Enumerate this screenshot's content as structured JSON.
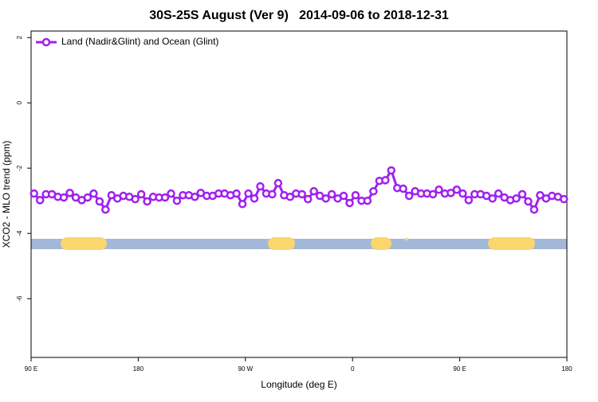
{
  "chart_data": {
    "type": "line",
    "title": "30S-25S August (Ver 9)   2014-09-06 to 2018-12-31",
    "x_label": "Longitude (deg E)",
    "y_label": "XCO2 - MLO trend (ppm)",
    "x": [
      92.5,
      97.5,
      102.5,
      107.5,
      112.5,
      117.5,
      122.5,
      127.5,
      132.5,
      137.5,
      142.5,
      147.5,
      152.5,
      157.5,
      162.5,
      167.5,
      172.5,
      177.5,
      182.5,
      187.5,
      192.5,
      197.5,
      202.5,
      207.5,
      212.5,
      217.5,
      222.5,
      227.5,
      232.5,
      237.5,
      242.5,
      247.5,
      252.5,
      257.5,
      262.5,
      267.5,
      272.5,
      277.5,
      282.5,
      287.5,
      292.5,
      297.5,
      302.5,
      307.5,
      312.5,
      317.5,
      322.5,
      327.5,
      332.5,
      337.5,
      342.5,
      347.5,
      352.5,
      357.5,
      362.5,
      367.5,
      372.5,
      377.5,
      382.5,
      387.5,
      392.5,
      397.5,
      402.5,
      407.5,
      412.5,
      417.5,
      422.5,
      427.5,
      432.5,
      437.5,
      442.5,
      447.5,
      452.5,
      457.5,
      462.5,
      467.5,
      472.5,
      477.5,
      482.5,
      487.5,
      492.5,
      497.5,
      502.5,
      507.5,
      512.5,
      517.5,
      522.5,
      527.5,
      532.5,
      537.5
    ],
    "series": [
      {
        "name": "Land (Nadir&Glint) and Ocean (Glint)",
        "color": "#a020f0",
        "values": [
          -2.78,
          -2.98,
          -2.8,
          -2.8,
          -2.88,
          -2.9,
          -2.76,
          -2.9,
          -2.98,
          -2.9,
          -2.78,
          -3.02,
          -3.27,
          -2.83,
          -2.93,
          -2.85,
          -2.88,
          -2.95,
          -2.8,
          -3.02,
          -2.88,
          -2.9,
          -2.9,
          -2.78,
          -3.0,
          -2.83,
          -2.83,
          -2.88,
          -2.76,
          -2.85,
          -2.85,
          -2.78,
          -2.78,
          -2.83,
          -2.78,
          -3.1,
          -2.78,
          -2.93,
          -2.56,
          -2.78,
          -2.8,
          -2.46,
          -2.83,
          -2.88,
          -2.78,
          -2.8,
          -2.95,
          -2.71,
          -2.85,
          -2.93,
          -2.8,
          -2.93,
          -2.85,
          -3.07,
          -2.83,
          -3.0,
          -3.0,
          -2.71,
          -2.39,
          -2.37,
          -2.07,
          -2.61,
          -2.63,
          -2.85,
          -2.71,
          -2.78,
          -2.78,
          -2.8,
          -2.66,
          -2.78,
          -2.76,
          -2.66,
          -2.78,
          -2.98,
          -2.8,
          -2.8,
          -2.85,
          -2.93,
          -2.78,
          -2.9,
          -2.98,
          -2.93,
          -2.8,
          -3.02,
          -3.27,
          -2.83,
          -2.93,
          -2.85,
          -2.88,
          -2.95
        ]
      }
    ],
    "xlim": [
      90,
      540
    ],
    "xticks": [
      {
        "value": 90,
        "label": "90 E"
      },
      180,
      {
        "value": 270,
        "label": "90 W"
      },
      {
        "value": 360,
        "label": "0"
      },
      {
        "value": 450,
        "label": "90 E"
      },
      {
        "value": 540,
        "label": "180"
      }
    ],
    "ylim": [
      -7.8,
      2.2
    ],
    "yticks": [
      -6,
      -4,
      -2,
      0,
      2
    ],
    "legend": "topleft"
  }
}
